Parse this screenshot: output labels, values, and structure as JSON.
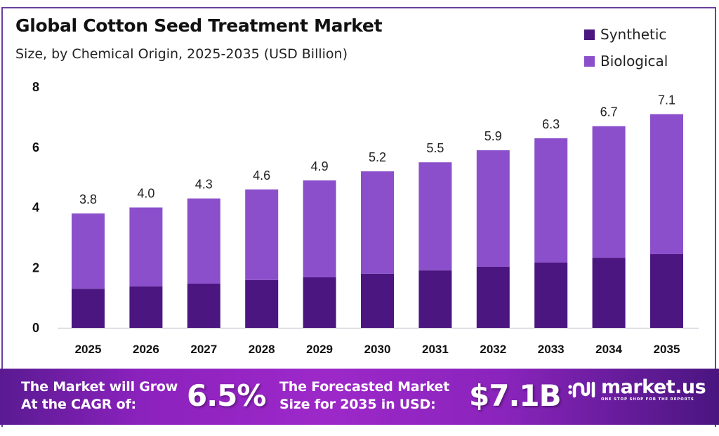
{
  "header": {
    "title": "Global Cotton Seed Treatment Market",
    "subtitle": "Size, by Chemical Origin, 2025-2035 (USD Billion)"
  },
  "legend": [
    {
      "label": "Synthetic",
      "color": "#4b1680"
    },
    {
      "label": "Biological",
      "color": "#8b4fcb"
    }
  ],
  "chart_data": {
    "type": "bar",
    "stacked": true,
    "title": "Global Cotton Seed Treatment Market",
    "subtitle": "Size, by Chemical Origin, 2025-2035 (USD Billion)",
    "xlabel": "",
    "ylabel": "",
    "ylim": [
      0,
      8
    ],
    "yticks": [
      0,
      2,
      4,
      6,
      8
    ],
    "grid": false,
    "legend_position": "top-right",
    "categories": [
      "2025",
      "2026",
      "2027",
      "2028",
      "2029",
      "2030",
      "2031",
      "2032",
      "2033",
      "2034",
      "2035"
    ],
    "series": [
      {
        "name": "Synthetic",
        "color": "#4b1680",
        "values": [
          1.3,
          1.38,
          1.47,
          1.59,
          1.68,
          1.8,
          1.91,
          2.03,
          2.17,
          2.33,
          2.45
        ]
      },
      {
        "name": "Biological",
        "color": "#8b4fcb",
        "values": [
          2.5,
          2.62,
          2.83,
          3.01,
          3.22,
          3.4,
          3.59,
          3.87,
          4.13,
          4.37,
          4.65
        ]
      }
    ],
    "totals": [
      3.8,
      4.0,
      4.3,
      4.6,
      4.9,
      5.2,
      5.5,
      5.9,
      6.3,
      6.7,
      7.1
    ],
    "total_labels": [
      "3.8",
      "4.0",
      "4.3",
      "4.6",
      "4.9",
      "5.2",
      "5.5",
      "5.9",
      "6.3",
      "6.7",
      "7.1"
    ]
  },
  "banner": {
    "cagr_text_line1": "The Market will Grow",
    "cagr_text_line2": "At the CAGR of:",
    "cagr_value": "6.5%",
    "forecast_text_line1": "The Forecasted Market",
    "forecast_text_line2": "Size for 2035 in USD:",
    "forecast_value": "$7.1B",
    "logo_name": "market.us",
    "logo_tagline": "ONE STOP SHOP FOR THE REPORTS"
  }
}
